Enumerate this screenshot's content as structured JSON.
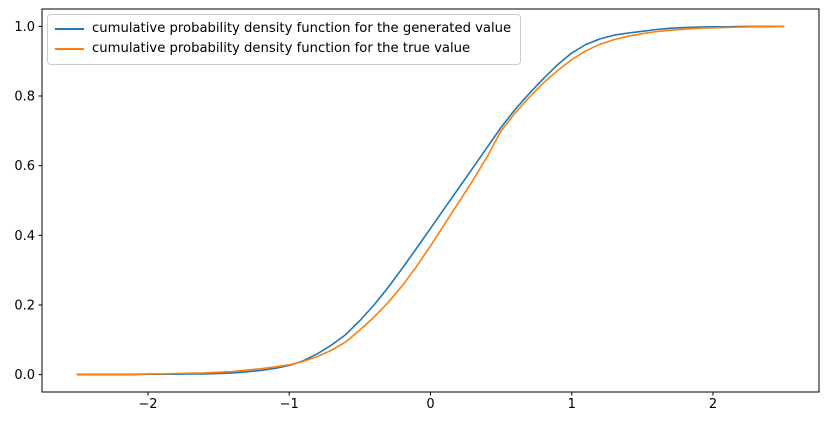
{
  "figure": {
    "background": "#ffffff",
    "frame_color": "#000000"
  },
  "legend": {
    "entries": [
      {
        "label": "cumulative probability density function for the generated value",
        "color": "#1f77b4"
      },
      {
        "label": "cumulative probability density function for the true value",
        "color": "#ff7f0e"
      }
    ]
  },
  "chart_data": {
    "type": "line",
    "title": "",
    "xlabel": "",
    "ylabel": "",
    "grid": false,
    "legend_position": "upper left",
    "xlim": [
      -2.75,
      2.75
    ],
    "ylim": [
      -0.05,
      1.05
    ],
    "x_ticks": [
      -2,
      -1,
      0,
      1,
      2
    ],
    "x_tick_labels": [
      "−2",
      "−1",
      "0",
      "1",
      "2"
    ],
    "y_ticks": [
      0.0,
      0.2,
      0.4,
      0.6,
      0.8,
      1.0
    ],
    "y_tick_labels": [
      "0.0",
      "0.2",
      "0.4",
      "0.6",
      "0.8",
      "1.0"
    ],
    "x": [
      -2.5,
      -2.4,
      -2.3,
      -2.2,
      -2.1,
      -2.0,
      -1.9,
      -1.8,
      -1.7,
      -1.6,
      -1.5,
      -1.4,
      -1.3,
      -1.2,
      -1.1,
      -1.0,
      -0.9,
      -0.8,
      -0.7,
      -0.6,
      -0.5,
      -0.4,
      -0.3,
      -0.2,
      -0.1,
      0.0,
      0.1,
      0.2,
      0.3,
      0.4,
      0.5,
      0.6,
      0.7,
      0.8,
      0.9,
      1.0,
      1.1,
      1.2,
      1.3,
      1.4,
      1.5,
      1.6,
      1.7,
      1.8,
      1.9,
      2.0,
      2.1,
      2.2,
      2.3,
      2.4,
      2.5
    ],
    "series": [
      {
        "name": "cumulative probability density function for the generated value",
        "color": "#1f77b4",
        "values": [
          0.0,
          0.0,
          0.0,
          0.0,
          0.0,
          0.001,
          0.001,
          0.001,
          0.002,
          0.002,
          0.003,
          0.005,
          0.008,
          0.012,
          0.018,
          0.026,
          0.04,
          0.06,
          0.085,
          0.115,
          0.155,
          0.2,
          0.25,
          0.305,
          0.362,
          0.42,
          0.478,
          0.536,
          0.594,
          0.652,
          0.71,
          0.762,
          0.808,
          0.85,
          0.89,
          0.924,
          0.948,
          0.964,
          0.975,
          0.981,
          0.986,
          0.991,
          0.995,
          0.997,
          0.998,
          0.999,
          0.999,
          1.0,
          1.0,
          1.0,
          1.0
        ]
      },
      {
        "name": "cumulative probability density function for the true value",
        "color": "#ff7f0e",
        "values": [
          0.001,
          0.001,
          0.001,
          0.001,
          0.001,
          0.002,
          0.002,
          0.003,
          0.004,
          0.005,
          0.007,
          0.009,
          0.013,
          0.017,
          0.022,
          0.028,
          0.038,
          0.052,
          0.07,
          0.094,
          0.128,
          0.165,
          0.207,
          0.255,
          0.31,
          0.37,
          0.432,
          0.495,
          0.558,
          0.625,
          0.7,
          0.752,
          0.797,
          0.838,
          0.873,
          0.905,
          0.93,
          0.949,
          0.962,
          0.972,
          0.979,
          0.985,
          0.989,
          0.992,
          0.995,
          0.996,
          0.997,
          0.998,
          0.999,
          0.999,
          1.0
        ]
      }
    ]
  }
}
